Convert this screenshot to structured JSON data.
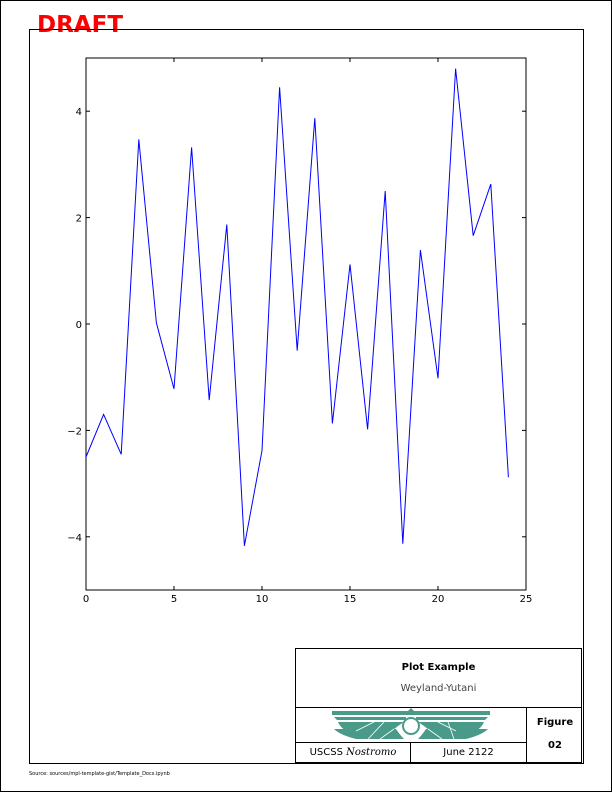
{
  "draft_label": "DRAFT",
  "chart_data": {
    "type": "line",
    "title": "",
    "xlabel": "",
    "ylabel": "",
    "xlim": [
      0,
      25
    ],
    "ylim": [
      -5,
      5
    ],
    "xticks": [
      0,
      5,
      10,
      15,
      20,
      25
    ],
    "yticks": [
      -4,
      -2,
      0,
      2,
      4
    ],
    "xtick_labels": [
      "0",
      "5",
      "10",
      "15",
      "20",
      "25"
    ],
    "ytick_labels": [
      "−4",
      "−2",
      "0",
      "2",
      "4"
    ],
    "grid": false,
    "series": [
      {
        "color": "#0000ff",
        "x": [
          0,
          1,
          2,
          3,
          4,
          5,
          6,
          7,
          8,
          9,
          10,
          11,
          12,
          13,
          14,
          15,
          16,
          17,
          18,
          19,
          20,
          21,
          22,
          23,
          24
        ],
        "y": [
          -2.5,
          -1.7,
          -2.45,
          3.47,
          0.02,
          -1.22,
          3.32,
          -1.43,
          1.87,
          -4.17,
          -2.38,
          4.45,
          -0.5,
          3.87,
          -1.87,
          1.12,
          -1.98,
          2.5,
          -4.13,
          1.39,
          -1.02,
          4.8,
          1.66,
          2.63,
          -2.88
        ]
      }
    ]
  },
  "title_block": {
    "title": "Plot Example",
    "company": "Weyland-Yutani",
    "figure_label": "Figure",
    "figure_number": "02",
    "ship_prefix": "USCSS ",
    "ship_name": "Nostromo",
    "date": "June 2122",
    "logo": "weyland-yutani-wings-logo",
    "logo_color": "#4a9a8a"
  },
  "source_note": "Source:   sources/mpl-template-gist/Template_Docs.ipynb"
}
